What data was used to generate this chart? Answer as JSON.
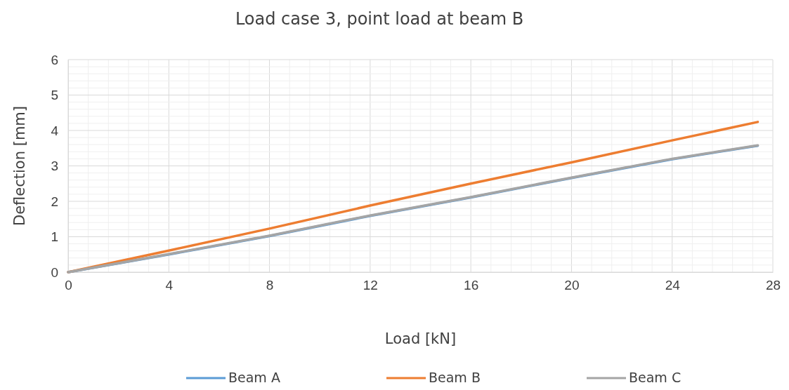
{
  "chart_data": {
    "type": "line",
    "title": "Load case 3, point load at beam B",
    "xlabel": "Load [kN]",
    "ylabel": "Deflection [mm]",
    "x": [
      0,
      4,
      8,
      12,
      16,
      20,
      24,
      27.4
    ],
    "series": [
      {
        "name": "Beam A",
        "color": "#5b9bd5",
        "values": [
          0,
          0.5,
          1.02,
          1.59,
          2.11,
          2.66,
          3.19,
          3.57
        ]
      },
      {
        "name": "Beam B",
        "color": "#ed7d31",
        "values": [
          0,
          0.61,
          1.23,
          1.88,
          2.5,
          3.1,
          3.72,
          4.24
        ]
      },
      {
        "name": "Beam C",
        "color": "#a5a5a5",
        "values": [
          0,
          0.51,
          1.03,
          1.6,
          2.12,
          2.67,
          3.2,
          3.58
        ]
      }
    ],
    "xlim": [
      0,
      28
    ],
    "xticks": [
      0,
      4,
      8,
      12,
      16,
      20,
      24,
      28
    ],
    "ylim": [
      0,
      6
    ],
    "yticks": [
      0,
      1,
      2,
      3,
      4,
      5,
      6
    ],
    "grid": true,
    "legend": "bottom",
    "marker": "none",
    "line_style": "solid"
  }
}
